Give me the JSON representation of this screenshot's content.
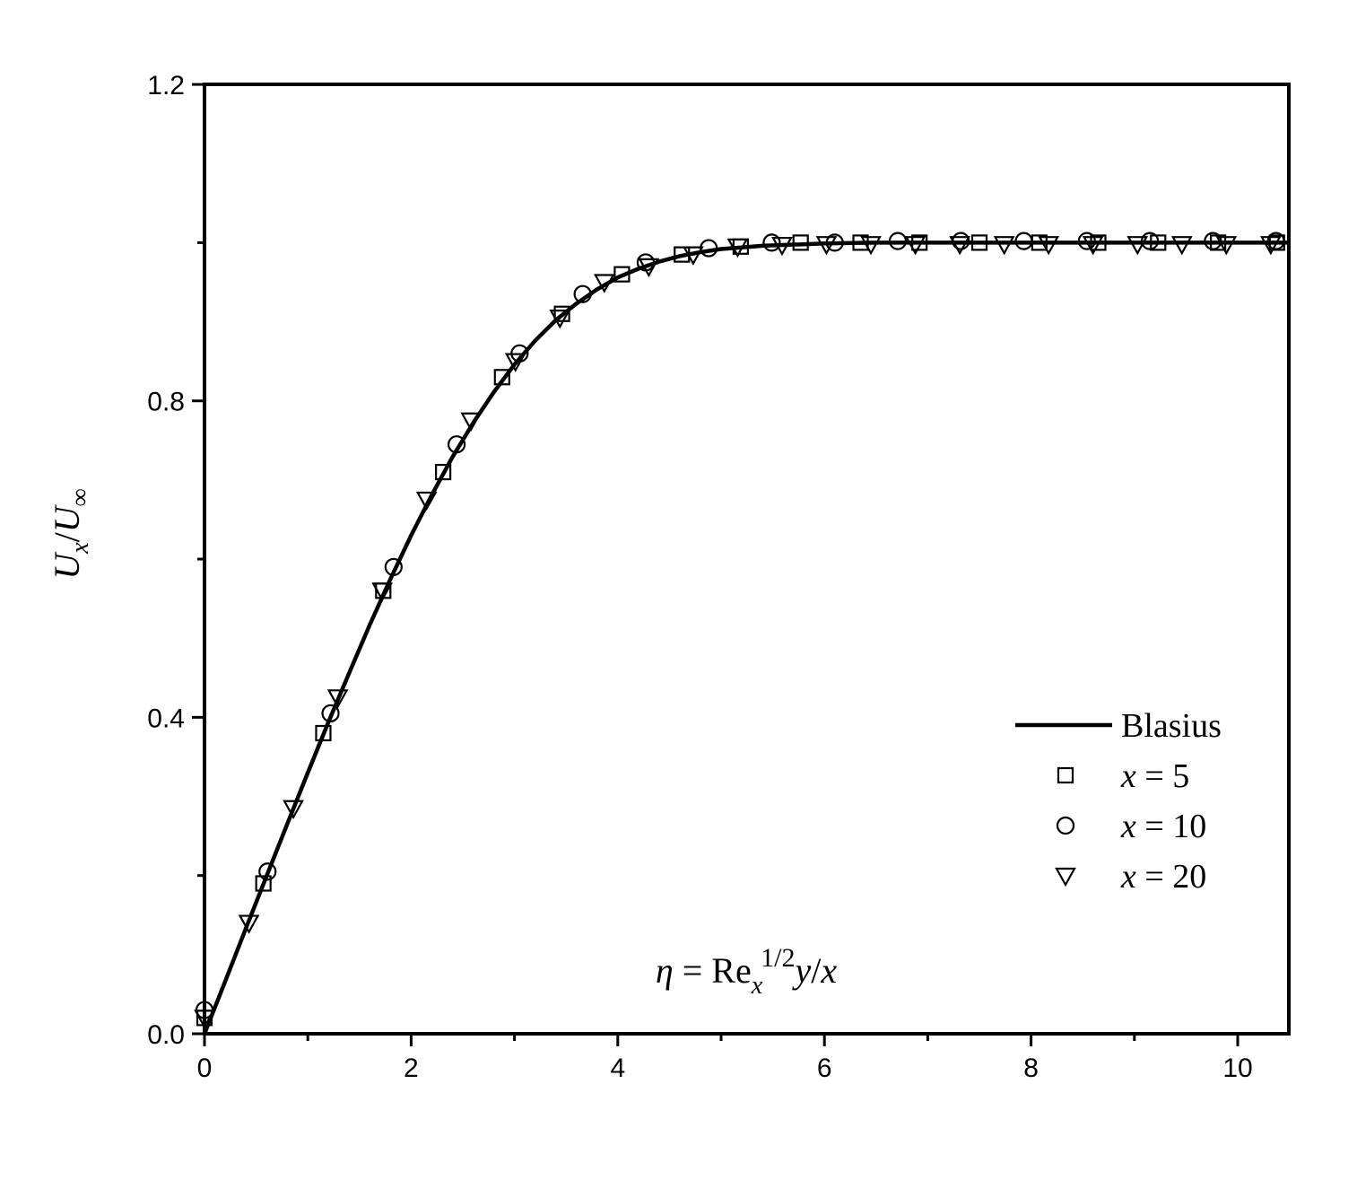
{
  "chart_data": {
    "type": "line",
    "xlabel": {
      "eta": "η",
      "equals": " = Re",
      "sub": "x",
      "sup": "1/2",
      "rest_y": "y",
      "slash": "/",
      "rest_x": "x"
    },
    "ylabel": {
      "u1": "U",
      "sub1": "x",
      "slash": "/",
      "u2": "U",
      "sub2": "∞"
    },
    "xlim": [
      0,
      10.5
    ],
    "ylim": [
      0,
      1.2
    ],
    "x_ticks": [
      0,
      2,
      4,
      6,
      8,
      10
    ],
    "x_tick_labels": [
      "0",
      "2",
      "4",
      "6",
      "8",
      "10"
    ],
    "y_ticks": [
      0.0,
      0.4,
      0.8,
      1.2
    ],
    "y_tick_labels": [
      "0.0",
      "0.4",
      "0.8",
      "1.2"
    ],
    "grid": false,
    "legend_position": "center-right",
    "series": [
      {
        "name": "Blasius",
        "label_prefix": "",
        "label_value": "Blasius",
        "kind": "line",
        "color": "#000000",
        "x": [
          0,
          0.2,
          0.4,
          0.6,
          0.8,
          1.0,
          1.2,
          1.4,
          1.6,
          1.8,
          2.0,
          2.2,
          2.4,
          2.6,
          2.8,
          3.0,
          3.2,
          3.4,
          3.6,
          3.8,
          4.0,
          4.2,
          4.4,
          4.6,
          4.8,
          5.0,
          5.2,
          5.4,
          5.6,
          5.8,
          6.0,
          6.5,
          7.0,
          8.0,
          9.0,
          10.0,
          10.5
        ],
        "y": [
          0,
          0.066,
          0.133,
          0.199,
          0.265,
          0.33,
          0.394,
          0.456,
          0.517,
          0.575,
          0.63,
          0.681,
          0.729,
          0.772,
          0.811,
          0.846,
          0.876,
          0.902,
          0.923,
          0.941,
          0.956,
          0.967,
          0.976,
          0.983,
          0.988,
          0.992,
          0.994,
          0.996,
          0.997,
          0.998,
          0.999,
          1.0,
          1.0,
          1.0,
          1.0,
          1.0,
          1.0
        ]
      },
      {
        "name": "x = 5",
        "label_prefix": "x",
        "label_value": " = 5",
        "kind": "marker",
        "marker": "square",
        "x": [
          0.0,
          0.57,
          1.15,
          1.73,
          2.31,
          2.88,
          3.46,
          4.04,
          4.62,
          5.19,
          5.77,
          6.35,
          6.92,
          7.5,
          8.08,
          8.65,
          9.23,
          9.81,
          10.38
        ],
        "y": [
          0.02,
          0.19,
          0.38,
          0.56,
          0.71,
          0.83,
          0.91,
          0.96,
          0.985,
          0.995,
          1.0,
          1.0,
          1.0,
          1.0,
          1.0,
          1.0,
          1.0,
          1.0,
          1.0
        ]
      },
      {
        "name": "x = 10",
        "label_prefix": "x",
        "label_value": " = 10",
        "kind": "marker",
        "marker": "circle",
        "x": [
          0.0,
          0.61,
          1.22,
          1.83,
          2.44,
          3.05,
          3.66,
          4.27,
          4.88,
          5.49,
          6.1,
          6.71,
          7.32,
          7.93,
          8.54,
          9.15,
          9.76,
          10.37
        ],
        "y": [
          0.03,
          0.205,
          0.405,
          0.59,
          0.745,
          0.86,
          0.935,
          0.975,
          0.993,
          1.0,
          1.0,
          1.002,
          1.002,
          1.002,
          1.002,
          1.002,
          1.002,
          1.002
        ]
      },
      {
        "name": "x = 20",
        "label_prefix": "x",
        "label_value": " = 20",
        "kind": "marker",
        "marker": "triangle-down",
        "x": [
          0.0,
          0.43,
          0.86,
          1.29,
          1.72,
          2.15,
          2.58,
          3.01,
          3.44,
          3.87,
          4.3,
          4.73,
          5.16,
          5.59,
          6.02,
          6.45,
          6.88,
          7.31,
          7.74,
          8.17,
          8.6,
          9.03,
          9.46,
          9.89,
          10.32
        ],
        "y": [
          0.02,
          0.14,
          0.285,
          0.425,
          0.56,
          0.675,
          0.775,
          0.85,
          0.905,
          0.95,
          0.97,
          0.985,
          0.995,
          0.997,
          0.998,
          0.998,
          0.998,
          0.998,
          0.998,
          0.998,
          0.998,
          0.998,
          0.998,
          0.998,
          0.998
        ]
      }
    ]
  }
}
